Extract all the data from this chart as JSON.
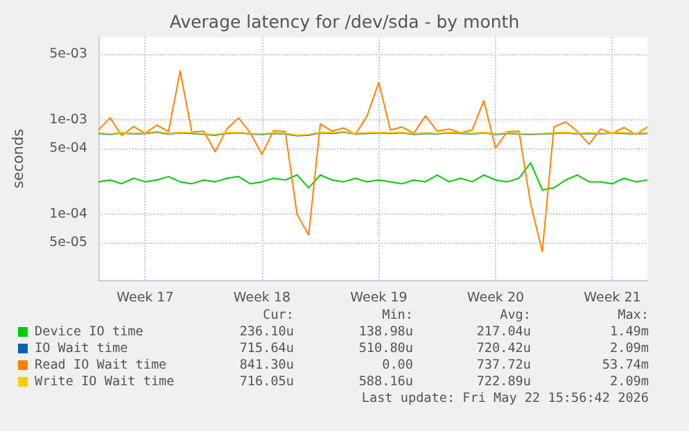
{
  "chart_data": {
    "type": "line",
    "title": "Average latency for /dev/sda - by month",
    "ylabel": "seconds",
    "categories": [
      null,
      null,
      null,
      null,
      "Week 17",
      null,
      null,
      null,
      null,
      null,
      null,
      null,
      null,
      null,
      "Week 18",
      null,
      null,
      null,
      null,
      null,
      null,
      null,
      null,
      null,
      "Week 19",
      null,
      null,
      null,
      null,
      null,
      null,
      null,
      null,
      null,
      "Week 20",
      null,
      null,
      null,
      null,
      null,
      null,
      null,
      null,
      null,
      "Week 21",
      null,
      null,
      null
    ],
    "series": [
      {
        "name": "Device IO time",
        "color": "#00cc00",
        "values": [
          0.00022,
          0.00023,
          0.00021,
          0.00024,
          0.00022,
          0.00023,
          0.00025,
          0.00022,
          0.00021,
          0.00023,
          0.00022,
          0.00024,
          0.00025,
          0.00021,
          0.00022,
          0.00024,
          0.00023,
          0.00026,
          0.00019,
          0.00026,
          0.00023,
          0.00022,
          0.00024,
          0.00022,
          0.00023,
          0.00022,
          0.00021,
          0.00023,
          0.00022,
          0.00026,
          0.00022,
          0.00024,
          0.00022,
          0.00026,
          0.00023,
          0.00022,
          0.00024,
          0.00035,
          0.00018,
          0.00019,
          0.00023,
          0.00026,
          0.00022,
          0.00022,
          0.00021,
          0.00024,
          0.00022,
          0.00023
        ]
      },
      {
        "name": "IO Wait time",
        "color": "#0066b3",
        "values": [
          0.00072,
          0.0007,
          0.00073,
          0.00071,
          0.00072,
          0.00074,
          0.00071,
          0.00073,
          0.00072,
          0.0007,
          0.00069,
          0.00072,
          0.00073,
          0.00071,
          0.0007,
          0.00072,
          0.00071,
          0.00068,
          0.00069,
          0.00073,
          0.00072,
          0.00074,
          0.00071,
          0.00072,
          0.00073,
          0.00072,
          0.00073,
          0.0007,
          0.00072,
          0.00071,
          0.00073,
          0.00072,
          0.00071,
          0.00073,
          0.0007,
          0.00072,
          0.00071,
          0.0007,
          0.00071,
          0.00072,
          0.00073,
          0.00071,
          0.00072,
          0.00071,
          0.00073,
          0.00072,
          0.00071,
          0.00072
        ]
      },
      {
        "name": "Read IO Wait time",
        "color": "#ff8000",
        "values": [
          0.00078,
          0.00105,
          0.00068,
          0.00085,
          0.00072,
          0.00088,
          0.00075,
          0.0033,
          0.00074,
          0.00076,
          0.00046,
          0.0008,
          0.00105,
          0.00073,
          0.00043,
          0.00077,
          0.00075,
          0.0001,
          6e-05,
          0.0009,
          0.00076,
          0.00082,
          0.0007,
          0.0011,
          0.0025,
          0.00078,
          0.00084,
          0.00072,
          0.0011,
          0.00076,
          0.0008,
          0.00073,
          0.00078,
          0.0016,
          0.0005,
          0.00075,
          0.00076,
          0.00013,
          4e-05,
          0.00084,
          0.00095,
          0.00076,
          0.00055,
          0.0008,
          0.00072,
          0.00083,
          0.0007,
          0.00084
        ]
      },
      {
        "name": "Write IO Wait time",
        "color": "#ffcc00",
        "values": [
          0.00073,
          0.00071,
          0.00074,
          0.00072,
          0.00073,
          0.00075,
          0.00072,
          0.00074,
          0.00073,
          0.00071,
          0.0007,
          0.00073,
          0.00074,
          0.00072,
          0.00071,
          0.00073,
          0.00072,
          0.00069,
          0.0007,
          0.00074,
          0.00073,
          0.00075,
          0.00072,
          0.00073,
          0.00074,
          0.00073,
          0.00074,
          0.00071,
          0.00073,
          0.00072,
          0.00074,
          0.00073,
          0.00072,
          0.00074,
          0.00071,
          0.00073,
          0.00072,
          0.00071,
          0.00072,
          0.00073,
          0.00074,
          0.00072,
          0.00073,
          0.00072,
          0.00074,
          0.00073,
          0.00072,
          0.00073
        ]
      }
    ],
    "ylim": [
      2e-05,
      0.0075
    ],
    "yticks": [
      {
        "value": 5e-05,
        "label": "5e-05"
      },
      {
        "value": 0.0001,
        "label": "1e-04"
      },
      {
        "value": 0.0005,
        "label": "5e-04"
      },
      {
        "value": 0.001,
        "label": "1e-03"
      },
      {
        "value": 0.005,
        "label": "5e-03"
      }
    ],
    "log": "y",
    "grid": true,
    "legend": "bottom",
    "marker": "none",
    "line_style": "solid",
    "annotations": [
      "Cur:",
      "Min:",
      "Avg:",
      "Max:",
      "236.10u",
      "138.98u",
      "217.04u",
      "1.49m",
      "715.64u",
      "510.80u",
      "720.42u",
      "2.09m",
      "841.30u",
      "0.00",
      "737.72u",
      "53.74m",
      "716.05u",
      "588.16u",
      "722.89u",
      "2.09m",
      "Last update: Fri May 22 15:56:42 2026"
    ]
  }
}
